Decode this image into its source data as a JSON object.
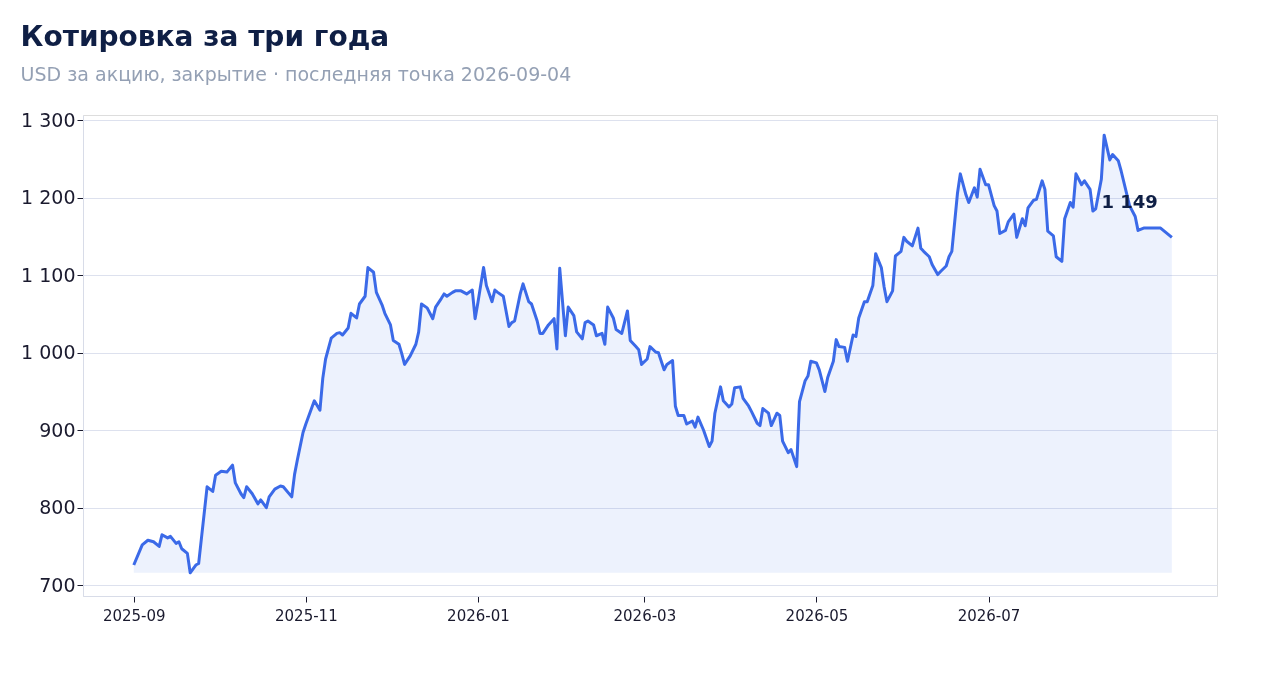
{
  "chart_data": {
    "type": "area",
    "title": "Котировка за три года",
    "subtitle": "USD за акцию, закрытие · последняя точка 2026-09-04",
    "x": [
      "2025-09-01",
      "2025-09-04",
      "2025-09-06",
      "2025-09-08",
      "2025-09-10",
      "2025-09-11",
      "2025-09-13",
      "2025-09-14",
      "2025-09-16",
      "2025-09-17",
      "2025-09-18",
      "2025-09-20",
      "2025-09-21",
      "2025-09-23",
      "2025-09-24",
      "2025-09-25",
      "2025-09-27",
      "2025-09-29",
      "2025-09-30",
      "2025-10-02",
      "2025-10-04",
      "2025-10-06",
      "2025-10-07",
      "2025-10-09",
      "2025-10-10",
      "2025-10-11",
      "2025-10-13",
      "2025-10-15",
      "2025-10-16",
      "2025-10-18",
      "2025-10-19",
      "2025-10-21",
      "2025-10-23",
      "2025-10-24",
      "2025-10-27",
      "2025-10-28",
      "2025-10-29",
      "2025-10-31",
      "2025-11-01",
      "2025-11-03",
      "2025-11-04",
      "2025-11-06",
      "2025-11-07",
      "2025-11-08",
      "2025-11-10",
      "2025-11-12",
      "2025-11-13",
      "2025-11-14",
      "2025-11-16",
      "2025-11-17",
      "2025-11-19",
      "2025-11-20",
      "2025-11-22",
      "2025-11-23",
      "2025-11-25",
      "2025-11-26",
      "2025-11-28",
      "2025-11-29",
      "2025-12-01",
      "2025-12-02",
      "2025-12-04",
      "2025-12-05",
      "2025-12-06",
      "2025-12-08",
      "2025-12-10",
      "2025-12-11",
      "2025-12-12",
      "2025-12-14",
      "2025-12-16",
      "2025-12-17",
      "2025-12-19",
      "2025-12-20",
      "2025-12-21",
      "2025-12-23",
      "2025-12-24",
      "2025-12-26",
      "2025-12-28",
      "2025-12-30",
      "2025-12-31",
      "2026-01-01",
      "2026-01-03",
      "2026-01-04",
      "2026-01-06",
      "2026-01-07",
      "2026-01-08",
      "2026-01-10",
      "2026-01-12",
      "2026-01-13",
      "2026-01-14",
      "2026-01-16",
      "2026-01-17",
      "2026-01-19",
      "2026-01-20",
      "2026-01-22",
      "2026-01-23",
      "2026-01-24",
      "2026-01-26",
      "2026-01-28",
      "2026-01-29",
      "2026-01-30",
      "2026-02-01",
      "2026-02-02",
      "2026-02-04",
      "2026-02-05",
      "2026-02-07",
      "2026-02-08",
      "2026-02-09",
      "2026-02-11",
      "2026-02-12",
      "2026-02-14",
      "2026-02-15",
      "2026-02-16",
      "2026-02-18",
      "2026-02-19",
      "2026-02-21",
      "2026-02-23",
      "2026-02-24",
      "2026-02-26",
      "2026-02-27",
      "2026-02-28",
      "2026-03-02",
      "2026-03-03",
      "2026-03-05",
      "2026-03-06",
      "2026-03-08",
      "2026-03-09",
      "2026-03-11",
      "2026-03-12",
      "2026-03-13",
      "2026-03-15",
      "2026-03-16",
      "2026-03-18",
      "2026-03-19",
      "2026-03-20",
      "2026-03-22",
      "2026-03-24",
      "2026-03-25",
      "2026-03-26",
      "2026-03-28",
      "2026-03-29",
      "2026-03-31",
      "2026-04-01",
      "2026-04-02",
      "2026-04-04",
      "2026-04-05",
      "2026-04-07",
      "2026-04-08",
      "2026-04-10",
      "2026-04-11",
      "2026-04-12",
      "2026-04-14",
      "2026-04-15",
      "2026-04-17",
      "2026-04-18",
      "2026-04-19",
      "2026-04-21",
      "2026-04-22",
      "2026-04-24",
      "2026-04-25",
      "2026-04-27",
      "2026-04-28",
      "2026-04-29",
      "2026-05-01",
      "2026-05-02",
      "2026-05-04",
      "2026-05-05",
      "2026-05-07",
      "2026-05-08",
      "2026-05-09",
      "2026-05-11",
      "2026-05-12",
      "2026-05-14",
      "2026-05-15",
      "2026-05-16",
      "2026-05-18",
      "2026-05-19",
      "2026-05-21",
      "2026-05-22",
      "2026-05-24",
      "2026-05-25",
      "2026-05-26",
      "2026-05-28",
      "2026-05-29",
      "2026-05-31",
      "2026-06-01",
      "2026-06-02",
      "2026-06-04",
      "2026-06-06",
      "2026-06-07",
      "2026-06-08",
      "2026-06-10",
      "2026-06-11",
      "2026-06-13",
      "2026-06-14",
      "2026-06-16",
      "2026-06-17",
      "2026-06-18",
      "2026-06-20",
      "2026-06-21",
      "2026-06-23",
      "2026-06-24",
      "2026-06-26",
      "2026-06-27",
      "2026-06-28",
      "2026-06-30",
      "2026-07-01",
      "2026-07-03",
      "2026-07-04",
      "2026-07-05",
      "2026-07-07",
      "2026-07-08",
      "2026-07-10",
      "2026-07-11",
      "2026-07-13",
      "2026-07-14",
      "2026-07-15",
      "2026-07-17",
      "2026-07-18",
      "2026-07-20",
      "2026-07-21",
      "2026-07-22",
      "2026-07-24",
      "2026-07-25",
      "2026-07-27",
      "2026-07-28",
      "2026-07-30",
      "2026-07-31",
      "2026-08-01",
      "2026-08-03",
      "2026-08-04",
      "2026-08-06",
      "2026-08-07",
      "2026-08-08",
      "2026-08-10",
      "2026-08-11",
      "2026-08-13",
      "2026-08-14",
      "2026-08-16",
      "2026-08-17",
      "2026-08-20",
      "2026-08-22",
      "2026-08-23",
      "2026-08-25",
      "2026-08-28",
      "2026-08-31",
      "2026-09-04"
    ],
    "series": [
      {
        "color": "#3b6ae8",
        "values": [
          726,
          752,
          758,
          756,
          750,
          765,
          761,
          763,
          754,
          756,
          747,
          741,
          716,
          726,
          728,
          761,
          827,
          821,
          842,
          847,
          846,
          855,
          832,
          818,
          813,
          827,
          818,
          805,
          810,
          800,
          814,
          824,
          828,
          827,
          814,
          843,
          862,
          897,
          908,
          928,
          938,
          926,
          967,
          992,
          1019,
          1025,
          1026,
          1023,
          1032,
          1051,
          1045,
          1063,
          1073,
          1110,
          1104,
          1078,
          1062,
          1051,
          1036,
          1016,
          1011,
          999,
          985,
          996,
          1011,
          1027,
          1063,
          1058,
          1044,
          1059,
          1070,
          1076,
          1073,
          1078,
          1080,
          1080,
          1076,
          1081,
          1044,
          1065,
          1110,
          1087,
          1066,
          1081,
          1078,
          1073,
          1034,
          1039,
          1041,
          1076,
          1089,
          1066,
          1063,
          1041,
          1025,
          1025,
          1036,
          1044,
          1005,
          1109,
          1022,
          1059,
          1048,
          1027,
          1018,
          1039,
          1041,
          1036,
          1022,
          1025,
          1011,
          1059,
          1045,
          1030,
          1025,
          1054,
          1016,
          1008,
          1004,
          985,
          992,
          1008,
          1001,
          1000,
          978,
          985,
          990,
          931,
          919,
          919,
          908,
          912,
          904,
          917,
          900,
          879,
          886,
          922,
          956,
          938,
          930,
          934,
          955,
          956,
          941,
          931,
          924,
          909,
          906,
          928,
          922,
          906,
          922,
          919,
          886,
          871,
          875,
          853,
          937,
          964,
          970,
          989,
          987,
          978,
          950,
          968,
          989,
          1017,
          1008,
          1007,
          989,
          1023,
          1021,
          1045,
          1066,
          1066,
          1087,
          1128,
          1110,
          1085,
          1066,
          1080,
          1125,
          1131,
          1149,
          1144,
          1138,
          1161,
          1135,
          1131,
          1124,
          1114,
          1101,
          1105,
          1112,
          1124,
          1131,
          1206,
          1231,
          1204,
          1194,
          1213,
          1201,
          1237,
          1217,
          1217,
          1190,
          1183,
          1154,
          1158,
          1169,
          1179,
          1149,
          1173,
          1164,
          1187,
          1197,
          1198,
          1222,
          1211,
          1157,
          1151,
          1124,
          1118,
          1173,
          1194,
          1188,
          1231,
          1217,
          1222,
          1211,
          1183,
          1186,
          1224,
          1281,
          1249,
          1256,
          1248,
          1235,
          1190,
          1176,
          1158,
          1161,
          1161,
          1161,
          1149
        ]
      }
    ],
    "xlim": [
      "2025-08-14",
      "2026-09-20"
    ],
    "xticks": [
      "2025-09",
      "2025-11",
      "2026-01",
      "2026-03",
      "2026-05",
      "2026-07"
    ],
    "ylim": [
      686,
      1307
    ],
    "yticks": [
      700,
      800,
      900,
      {
        "value": 1000,
        "label": "1 000"
      },
      {
        "value": 1100,
        "label": "1 100"
      },
      {
        "value": 1200,
        "label": "1 200"
      },
      {
        "value": 1300,
        "label": "1 300"
      }
    ],
    "grid": "y",
    "annotations": [
      {
        "text": "1 149",
        "x": "2026-09-04",
        "y": 1149
      }
    ]
  }
}
